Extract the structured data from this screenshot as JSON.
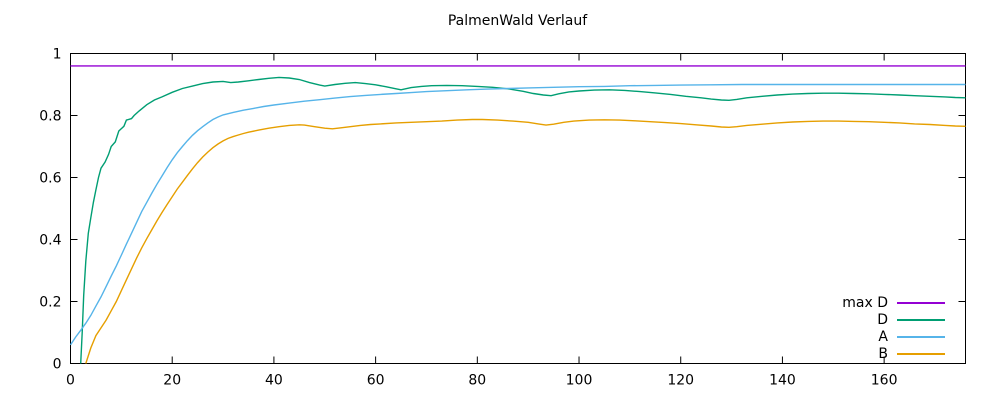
{
  "frame": {
    "background": "#ffffff",
    "border_color": "#000000",
    "text_color": "#000000"
  },
  "chart_data": {
    "type": "line",
    "title": "PalmenWald Verlauf",
    "xlabel": "",
    "ylabel": "",
    "xlim": [
      0,
      176
    ],
    "ylim": [
      0,
      1
    ],
    "xticks": [
      0,
      20,
      40,
      60,
      80,
      100,
      120,
      140,
      160
    ],
    "yticks": [
      0,
      0.2,
      0.4,
      0.6,
      0.8,
      1
    ],
    "grid": false,
    "legend_position": "inside-bottom-right",
    "legend_order": [
      "max D",
      "D",
      "A",
      "B"
    ],
    "series": [
      {
        "name": "max D",
        "color": "#9400d3",
        "points": [
          [
            0,
            0.96
          ],
          [
            176,
            0.96
          ]
        ]
      },
      {
        "name": "D",
        "color": "#009e73",
        "points": [
          [
            2,
            0
          ],
          [
            2.3,
            0.1
          ],
          [
            2.6,
            0.22
          ],
          [
            3,
            0.33
          ],
          [
            3.5,
            0.42
          ],
          [
            4,
            0.47
          ],
          [
            4.5,
            0.52
          ],
          [
            5,
            0.56
          ],
          [
            5.5,
            0.6
          ],
          [
            6,
            0.63
          ],
          [
            6.8,
            0.65
          ],
          [
            7.5,
            0.675
          ],
          [
            8,
            0.7
          ],
          [
            8.8,
            0.715
          ],
          [
            9.5,
            0.75
          ],
          [
            10.5,
            0.765
          ],
          [
            11,
            0.785
          ],
          [
            12,
            0.79
          ],
          [
            12.5,
            0.8
          ],
          [
            13.5,
            0.815
          ],
          [
            15,
            0.835
          ],
          [
            16.5,
            0.85
          ],
          [
            18,
            0.86
          ],
          [
            20,
            0.875
          ],
          [
            22,
            0.887
          ],
          [
            24,
            0.895
          ],
          [
            26,
            0.903
          ],
          [
            28,
            0.908
          ],
          [
            30,
            0.91
          ],
          [
            31.5,
            0.906
          ],
          [
            33,
            0.908
          ],
          [
            35,
            0.912
          ],
          [
            37,
            0.916
          ],
          [
            39,
            0.92
          ],
          [
            41,
            0.923
          ],
          [
            43,
            0.921
          ],
          [
            45,
            0.916
          ],
          [
            47,
            0.906
          ],
          [
            49,
            0.898
          ],
          [
            50,
            0.895
          ],
          [
            52,
            0.9
          ],
          [
            54,
            0.904
          ],
          [
            56,
            0.906
          ],
          [
            58,
            0.903
          ],
          [
            60,
            0.899
          ],
          [
            62,
            0.893
          ],
          [
            64,
            0.886
          ],
          [
            65,
            0.883
          ],
          [
            67,
            0.89
          ],
          [
            69,
            0.894
          ],
          [
            71,
            0.896
          ],
          [
            74,
            0.897
          ],
          [
            77,
            0.896
          ],
          [
            80,
            0.894
          ],
          [
            83,
            0.891
          ],
          [
            86,
            0.886
          ],
          [
            89,
            0.878
          ],
          [
            91,
            0.871
          ],
          [
            93,
            0.866
          ],
          [
            94.5,
            0.864
          ],
          [
            96,
            0.87
          ],
          [
            98,
            0.876
          ],
          [
            100,
            0.879
          ],
          [
            103,
            0.882
          ],
          [
            106,
            0.883
          ],
          [
            109,
            0.881
          ],
          [
            112,
            0.877
          ],
          [
            115,
            0.873
          ],
          [
            118,
            0.868
          ],
          [
            121,
            0.862
          ],
          [
            124,
            0.857
          ],
          [
            126,
            0.853
          ],
          [
            128,
            0.85
          ],
          [
            129.5,
            0.849
          ],
          [
            131,
            0.852
          ],
          [
            133,
            0.857
          ],
          [
            136,
            0.862
          ],
          [
            139,
            0.866
          ],
          [
            142,
            0.869
          ],
          [
            145,
            0.871
          ],
          [
            148,
            0.872
          ],
          [
            151,
            0.872
          ],
          [
            154,
            0.871
          ],
          [
            157,
            0.87
          ],
          [
            160,
            0.868
          ],
          [
            163,
            0.866
          ],
          [
            166,
            0.864
          ],
          [
            169,
            0.862
          ],
          [
            172,
            0.86
          ],
          [
            174,
            0.858
          ],
          [
            176,
            0.857
          ]
        ]
      },
      {
        "name": "A",
        "color": "#56b4e9",
        "points": [
          [
            0,
            0.06
          ],
          [
            1,
            0.085
          ],
          [
            2,
            0.107
          ],
          [
            3,
            0.13
          ],
          [
            4,
            0.155
          ],
          [
            5,
            0.185
          ],
          [
            6,
            0.215
          ],
          [
            7,
            0.248
          ],
          [
            8,
            0.282
          ],
          [
            9,
            0.315
          ],
          [
            10,
            0.35
          ],
          [
            11,
            0.385
          ],
          [
            12,
            0.42
          ],
          [
            13,
            0.455
          ],
          [
            14,
            0.49
          ],
          [
            15,
            0.52
          ],
          [
            16,
            0.55
          ],
          [
            17,
            0.578
          ],
          [
            18,
            0.605
          ],
          [
            19,
            0.632
          ],
          [
            20,
            0.657
          ],
          [
            21,
            0.68
          ],
          [
            22,
            0.7
          ],
          [
            23,
            0.719
          ],
          [
            24,
            0.736
          ],
          [
            25,
            0.751
          ],
          [
            26,
            0.764
          ],
          [
            27,
            0.776
          ],
          [
            28,
            0.787
          ],
          [
            29,
            0.795
          ],
          [
            30,
            0.802
          ],
          [
            32,
            0.81
          ],
          [
            34,
            0.817
          ],
          [
            36,
            0.823
          ],
          [
            38,
            0.829
          ],
          [
            40,
            0.834
          ],
          [
            43,
            0.84
          ],
          [
            46,
            0.846
          ],
          [
            49,
            0.851
          ],
          [
            52,
            0.856
          ],
          [
            55,
            0.861
          ],
          [
            58,
            0.865
          ],
          [
            61,
            0.868
          ],
          [
            64,
            0.871
          ],
          [
            67,
            0.874
          ],
          [
            70,
            0.877
          ],
          [
            74,
            0.88
          ],
          [
            78,
            0.883
          ],
          [
            82,
            0.885
          ],
          [
            86,
            0.887
          ],
          [
            90,
            0.889
          ],
          [
            95,
            0.891
          ],
          [
            100,
            0.893
          ],
          [
            105,
            0.894
          ],
          [
            110,
            0.896
          ],
          [
            115,
            0.897
          ],
          [
            120,
            0.898
          ],
          [
            126,
            0.899
          ],
          [
            132,
            0.9
          ],
          [
            140,
            0.9
          ],
          [
            150,
            0.9
          ],
          [
            160,
            0.9
          ],
          [
            168,
            0.9
          ],
          [
            176,
            0.9
          ]
        ]
      },
      {
        "name": "B",
        "color": "#e69f00",
        "points": [
          [
            3,
            0
          ],
          [
            4,
            0.05
          ],
          [
            5,
            0.09
          ],
          [
            6,
            0.115
          ],
          [
            7,
            0.14
          ],
          [
            8,
            0.17
          ],
          [
            9,
            0.2
          ],
          [
            10,
            0.235
          ],
          [
            11,
            0.27
          ],
          [
            12,
            0.305
          ],
          [
            13,
            0.34
          ],
          [
            14,
            0.373
          ],
          [
            15,
            0.403
          ],
          [
            16,
            0.432
          ],
          [
            17,
            0.46
          ],
          [
            18,
            0.487
          ],
          [
            19,
            0.513
          ],
          [
            20,
            0.538
          ],
          [
            21,
            0.563
          ],
          [
            22,
            0.585
          ],
          [
            23,
            0.607
          ],
          [
            24,
            0.628
          ],
          [
            25,
            0.648
          ],
          [
            26,
            0.666
          ],
          [
            27,
            0.682
          ],
          [
            28,
            0.696
          ],
          [
            29,
            0.708
          ],
          [
            30,
            0.718
          ],
          [
            31,
            0.726
          ],
          [
            32,
            0.732
          ],
          [
            33,
            0.737
          ],
          [
            34,
            0.742
          ],
          [
            35,
            0.746
          ],
          [
            37,
            0.753
          ],
          [
            39,
            0.759
          ],
          [
            41,
            0.764
          ],
          [
            43,
            0.768
          ],
          [
            45,
            0.77
          ],
          [
            46,
            0.769
          ],
          [
            48,
            0.764
          ],
          [
            50,
            0.759
          ],
          [
            51.5,
            0.757
          ],
          [
            53,
            0.76
          ],
          [
            55,
            0.764
          ],
          [
            57,
            0.768
          ],
          [
            59,
            0.771
          ],
          [
            61,
            0.773
          ],
          [
            64,
            0.776
          ],
          [
            67,
            0.778
          ],
          [
            70,
            0.78
          ],
          [
            73,
            0.782
          ],
          [
            76,
            0.785
          ],
          [
            79,
            0.787
          ],
          [
            81,
            0.787
          ],
          [
            84,
            0.785
          ],
          [
            87,
            0.782
          ],
          [
            90,
            0.778
          ],
          [
            92,
            0.773
          ],
          [
            93.5,
            0.769
          ],
          [
            95,
            0.772
          ],
          [
            97,
            0.778
          ],
          [
            99,
            0.782
          ],
          [
            102,
            0.785
          ],
          [
            105,
            0.786
          ],
          [
            108,
            0.785
          ],
          [
            111,
            0.783
          ],
          [
            114,
            0.78
          ],
          [
            117,
            0.777
          ],
          [
            120,
            0.774
          ],
          [
            123,
            0.77
          ],
          [
            126,
            0.766
          ],
          [
            128,
            0.763
          ],
          [
            129.5,
            0.762
          ],
          [
            131,
            0.764
          ],
          [
            133,
            0.768
          ],
          [
            136,
            0.772
          ],
          [
            139,
            0.776
          ],
          [
            142,
            0.779
          ],
          [
            145,
            0.781
          ],
          [
            148,
            0.782
          ],
          [
            151,
            0.782
          ],
          [
            154,
            0.781
          ],
          [
            157,
            0.78
          ],
          [
            160,
            0.778
          ],
          [
            163,
            0.776
          ],
          [
            166,
            0.773
          ],
          [
            169,
            0.771
          ],
          [
            172,
            0.768
          ],
          [
            174,
            0.766
          ],
          [
            176,
            0.765
          ]
        ]
      }
    ]
  }
}
